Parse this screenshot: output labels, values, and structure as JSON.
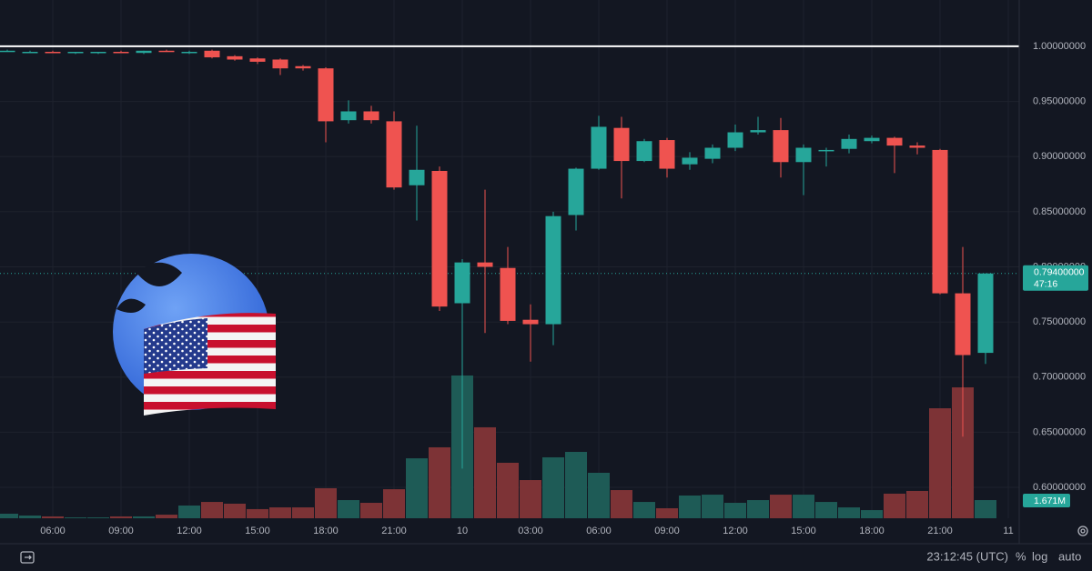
{
  "chart_data": {
    "type": "candlestick",
    "categories": [
      null,
      null,
      "06:00",
      null,
      null,
      "09:00",
      null,
      null,
      "12:00",
      null,
      null,
      "15:00",
      null,
      null,
      "18:00",
      null,
      null,
      "21:00",
      null,
      null,
      "10",
      null,
      null,
      "03:00",
      null,
      null,
      "06:00",
      null,
      null,
      "09:00",
      null,
      null,
      "12:00",
      null,
      null,
      "15:00",
      null,
      null,
      "18:00",
      null,
      null,
      "21:00",
      null,
      null,
      "11"
    ],
    "open": [
      0.995,
      0.995,
      0.995,
      0.994,
      0.994,
      0.995,
      0.994,
      0.996,
      0.994,
      0.996,
      0.991,
      0.989,
      0.988,
      0.982,
      0.98,
      0.933,
      0.941,
      0.932,
      0.874,
      0.887,
      0.767,
      0.804,
      0.799,
      0.752,
      0.748,
      0.847,
      0.889,
      0.926,
      0.896,
      0.915,
      0.893,
      0.898,
      0.908,
      0.922,
      0.924,
      0.895,
      0.905,
      0.907,
      0.914,
      0.917,
      0.91,
      0.906,
      0.776,
      0.722,
      null
    ],
    "high": [
      0.997,
      0.996,
      0.996,
      0.995,
      0.995,
      0.996,
      0.996,
      0.997,
      0.996,
      0.997,
      0.992,
      0.99,
      0.989,
      0.983,
      0.981,
      0.951,
      0.946,
      0.941,
      0.928,
      0.891,
      0.807,
      0.87,
      0.818,
      0.766,
      0.85,
      0.89,
      0.937,
      0.936,
      0.916,
      0.917,
      0.904,
      0.911,
      0.929,
      0.936,
      0.935,
      0.911,
      0.908,
      0.92,
      0.919,
      0.918,
      0.913,
      0.907,
      0.818,
      0.794,
      null
    ],
    "low": [
      0.995,
      0.994,
      0.994,
      0.993,
      0.993,
      0.994,
      0.993,
      0.995,
      0.993,
      0.989,
      0.987,
      0.984,
      0.974,
      0.978,
      0.913,
      0.93,
      0.93,
      0.87,
      0.842,
      0.76,
      0.617,
      0.74,
      0.748,
      0.714,
      0.729,
      0.833,
      0.888,
      0.862,
      0.895,
      0.881,
      0.888,
      0.894,
      0.905,
      0.92,
      0.881,
      0.865,
      0.891,
      0.903,
      0.912,
      0.885,
      0.902,
      0.775,
      0.646,
      0.712,
      null
    ],
    "close": [
      0.996,
      0.995,
      0.994,
      0.995,
      0.995,
      0.994,
      0.996,
      0.995,
      0.995,
      0.99,
      0.988,
      0.986,
      0.98,
      0.98,
      0.932,
      0.941,
      0.933,
      0.872,
      0.888,
      0.764,
      0.804,
      0.8,
      0.751,
      0.748,
      0.846,
      0.889,
      0.927,
      0.896,
      0.914,
      0.889,
      0.899,
      0.908,
      0.922,
      0.924,
      0.895,
      0.908,
      0.906,
      0.916,
      0.917,
      0.91,
      0.908,
      0.776,
      0.72,
      0.794,
      null
    ],
    "volume": {
      "values": [
        0.42,
        0.25,
        0.17,
        0.08,
        0.08,
        0.17,
        0.17,
        0.33,
        1.17,
        1.5,
        1.34,
        0.84,
        1.0,
        1.0,
        2.76,
        1.67,
        1.42,
        2.67,
        5.51,
        6.52,
        13.12,
        8.36,
        5.1,
        3.51,
        5.6,
        6.1,
        4.18,
        2.59,
        1.5,
        0.92,
        2.09,
        2.17,
        1.42,
        1.67,
        2.17,
        2.17,
        1.5,
        1.0,
        0.75,
        2.26,
        2.51,
        10.11,
        12.03,
        1.671,
        null
      ],
      "value_labels": [
        null,
        null,
        null,
        null,
        null,
        null,
        null,
        null,
        null,
        null,
        null,
        null,
        null,
        null,
        null,
        null,
        null,
        null,
        null,
        null,
        null,
        null,
        null,
        null,
        null,
        null,
        null,
        null,
        null,
        null,
        null,
        null,
        null,
        null,
        null,
        null,
        null,
        null,
        null,
        null,
        null,
        null,
        null,
        "1.671M",
        null
      ]
    },
    "up_color": "#26a69a",
    "down_color": "#ef5350",
    "volume_up_color": "#1e5b56",
    "volume_down_color": "#7d3336",
    "ylim": [
      0.572,
      1.042
    ],
    "yticks": [
      {
        "value": 0.6,
        "label": "0.60000000"
      },
      {
        "value": 0.65,
        "label": "0.65000000"
      },
      {
        "value": 0.7,
        "label": "0.70000000"
      },
      {
        "value": 0.75,
        "label": "0.75000000"
      },
      {
        "value": 0.8,
        "label": "0.80000000"
      },
      {
        "value": 0.85,
        "label": "0.85000000"
      },
      {
        "value": 0.9,
        "label": "0.90000000"
      },
      {
        "value": 0.95,
        "label": "0.95000000"
      },
      {
        "value": 1.0,
        "label": "1.00000000"
      }
    ],
    "grid": true,
    "reference_line": 1.0,
    "last_price": {
      "value": 0.794,
      "label": "0.79400000"
    },
    "countdown": "47:16",
    "toolbar": {
      "clock": "23:12:45 (UTC)",
      "percent": "%",
      "log": "log",
      "auto": "auto"
    }
  }
}
